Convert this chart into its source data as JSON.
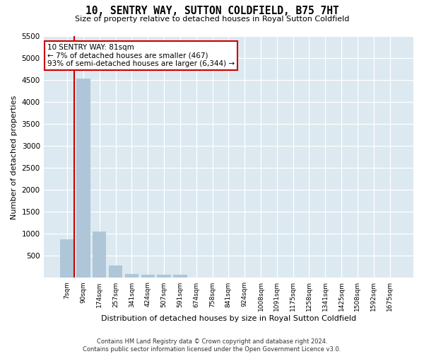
{
  "title": "10, SENTRY WAY, SUTTON COLDFIELD, B75 7HT",
  "subtitle": "Size of property relative to detached houses in Royal Sutton Coldfield",
  "xlabel": "Distribution of detached houses by size in Royal Sutton Coldfield",
  "ylabel": "Number of detached properties",
  "categories": [
    "7sqm",
    "90sqm",
    "174sqm",
    "257sqm",
    "341sqm",
    "424sqm",
    "507sqm",
    "591sqm",
    "674sqm",
    "758sqm",
    "841sqm",
    "924sqm",
    "1008sqm",
    "1091sqm",
    "1175sqm",
    "1258sqm",
    "1341sqm",
    "1425sqm",
    "1508sqm",
    "1592sqm",
    "1675sqm"
  ],
  "values": [
    880,
    4540,
    1060,
    280,
    95,
    75,
    65,
    70,
    0,
    0,
    0,
    0,
    0,
    0,
    0,
    0,
    0,
    0,
    0,
    0,
    0
  ],
  "bar_color": "#aec6d8",
  "highlight_color": "#cc0000",
  "annotation_text": "10 SENTRY WAY: 81sqm\n← 7% of detached houses are smaller (467)\n93% of semi-detached houses are larger (6,344) →",
  "ylim_max": 5500,
  "yticks": [
    0,
    500,
    1000,
    1500,
    2000,
    2500,
    3000,
    3500,
    4000,
    4500,
    5000,
    5500
  ],
  "ax_bg_color": "#dce9f0",
  "footer": "Contains HM Land Registry data © Crown copyright and database right 2024.\nContains public sector information licensed under the Open Government Licence v3.0."
}
